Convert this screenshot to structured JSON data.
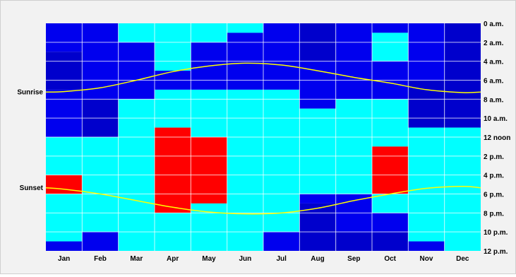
{
  "chart_data": {
    "type": "heatmap",
    "title": "",
    "xlabel": "",
    "ylabel": "",
    "x_categories": [
      "Jan",
      "Feb",
      "Mar",
      "Apr",
      "May",
      "Jun",
      "Jul",
      "Aug",
      "Sep",
      "Oct",
      "Nov",
      "Dec"
    ],
    "y_tick_labels": [
      "0 a.m.",
      "2 a.m.",
      "4 a.m.",
      "6 a.m.",
      "8 a.m.",
      "10 a.m.",
      "12 noon",
      "2 p.m.",
      "4 p.m.",
      "6 p.m.",
      "8 p.m.",
      "10 p.m.",
      "12 p.m."
    ],
    "ylim": [
      0,
      24
    ],
    "value_key": {
      "1": "#0000cc",
      "2": "#0000ee",
      "3": "#2222ff",
      "4": "#00ffff",
      "5": "#ff0000"
    },
    "columns": [
      {
        "month": "Jan",
        "segments": [
          [
            0,
            3,
            2
          ],
          [
            3,
            7,
            1
          ],
          [
            7,
            12,
            2
          ],
          [
            12,
            16,
            4
          ],
          [
            16,
            18,
            5
          ],
          [
            18,
            23,
            4
          ],
          [
            23,
            24,
            2
          ]
        ]
      },
      {
        "month": "Feb",
        "segments": [
          [
            0,
            8,
            2
          ],
          [
            8,
            12,
            1
          ],
          [
            12,
            22,
            4
          ],
          [
            22,
            24,
            2
          ]
        ]
      },
      {
        "month": "Mar",
        "segments": [
          [
            0,
            2,
            4
          ],
          [
            2,
            8,
            2
          ],
          [
            8,
            24,
            4
          ]
        ]
      },
      {
        "month": "Apr",
        "segments": [
          [
            0,
            5,
            4
          ],
          [
            5,
            7,
            2
          ],
          [
            7,
            11,
            4
          ],
          [
            11,
            20,
            5
          ],
          [
            20,
            24,
            4
          ]
        ]
      },
      {
        "month": "May",
        "segments": [
          [
            0,
            2,
            4
          ],
          [
            2,
            7,
            2
          ],
          [
            7,
            12,
            4
          ],
          [
            12,
            19,
            5
          ],
          [
            19,
            24,
            4
          ]
        ]
      },
      {
        "month": "Jun",
        "segments": [
          [
            0,
            1,
            4
          ],
          [
            1,
            7,
            2
          ],
          [
            7,
            24,
            4
          ]
        ]
      },
      {
        "month": "Jul",
        "segments": [
          [
            0,
            7,
            2
          ],
          [
            7,
            22,
            4
          ],
          [
            22,
            24,
            2
          ]
        ]
      },
      {
        "month": "Aug",
        "segments": [
          [
            0,
            4,
            1
          ],
          [
            4,
            9,
            2
          ],
          [
            9,
            18,
            4
          ],
          [
            18,
            19,
            2
          ],
          [
            19,
            24,
            1
          ]
        ]
      },
      {
        "month": "Sep",
        "segments": [
          [
            0,
            8,
            2
          ],
          [
            8,
            18,
            4
          ],
          [
            18,
            22,
            2
          ],
          [
            22,
            24,
            1
          ]
        ]
      },
      {
        "month": "Oct",
        "segments": [
          [
            0,
            1,
            2
          ],
          [
            1,
            4,
            4
          ],
          [
            4,
            8,
            2
          ],
          [
            8,
            13,
            4
          ],
          [
            13,
            18,
            5
          ],
          [
            18,
            20,
            4
          ],
          [
            20,
            22,
            2
          ],
          [
            22,
            24,
            1
          ]
        ]
      },
      {
        "month": "Nov",
        "segments": [
          [
            0,
            6,
            2
          ],
          [
            6,
            11,
            1
          ],
          [
            11,
            23,
            4
          ],
          [
            23,
            24,
            2
          ]
        ]
      },
      {
        "month": "Dec",
        "segments": [
          [
            0,
            11,
            1
          ],
          [
            11,
            24,
            4
          ]
        ]
      }
    ],
    "series": [
      {
        "name": "Sunrise",
        "color": "#ffff00",
        "values": [
          7.2,
          6.8,
          6.0,
          5.1,
          4.5,
          4.2,
          4.4,
          5.0,
          5.7,
          6.3,
          7.0,
          7.3
        ]
      },
      {
        "name": "Sunset",
        "color": "#ffff00",
        "values": [
          17.5,
          18.0,
          18.7,
          19.4,
          19.9,
          20.1,
          20.0,
          19.5,
          18.7,
          18.0,
          17.4,
          17.2
        ]
      }
    ],
    "grid": true,
    "legend": "none"
  }
}
